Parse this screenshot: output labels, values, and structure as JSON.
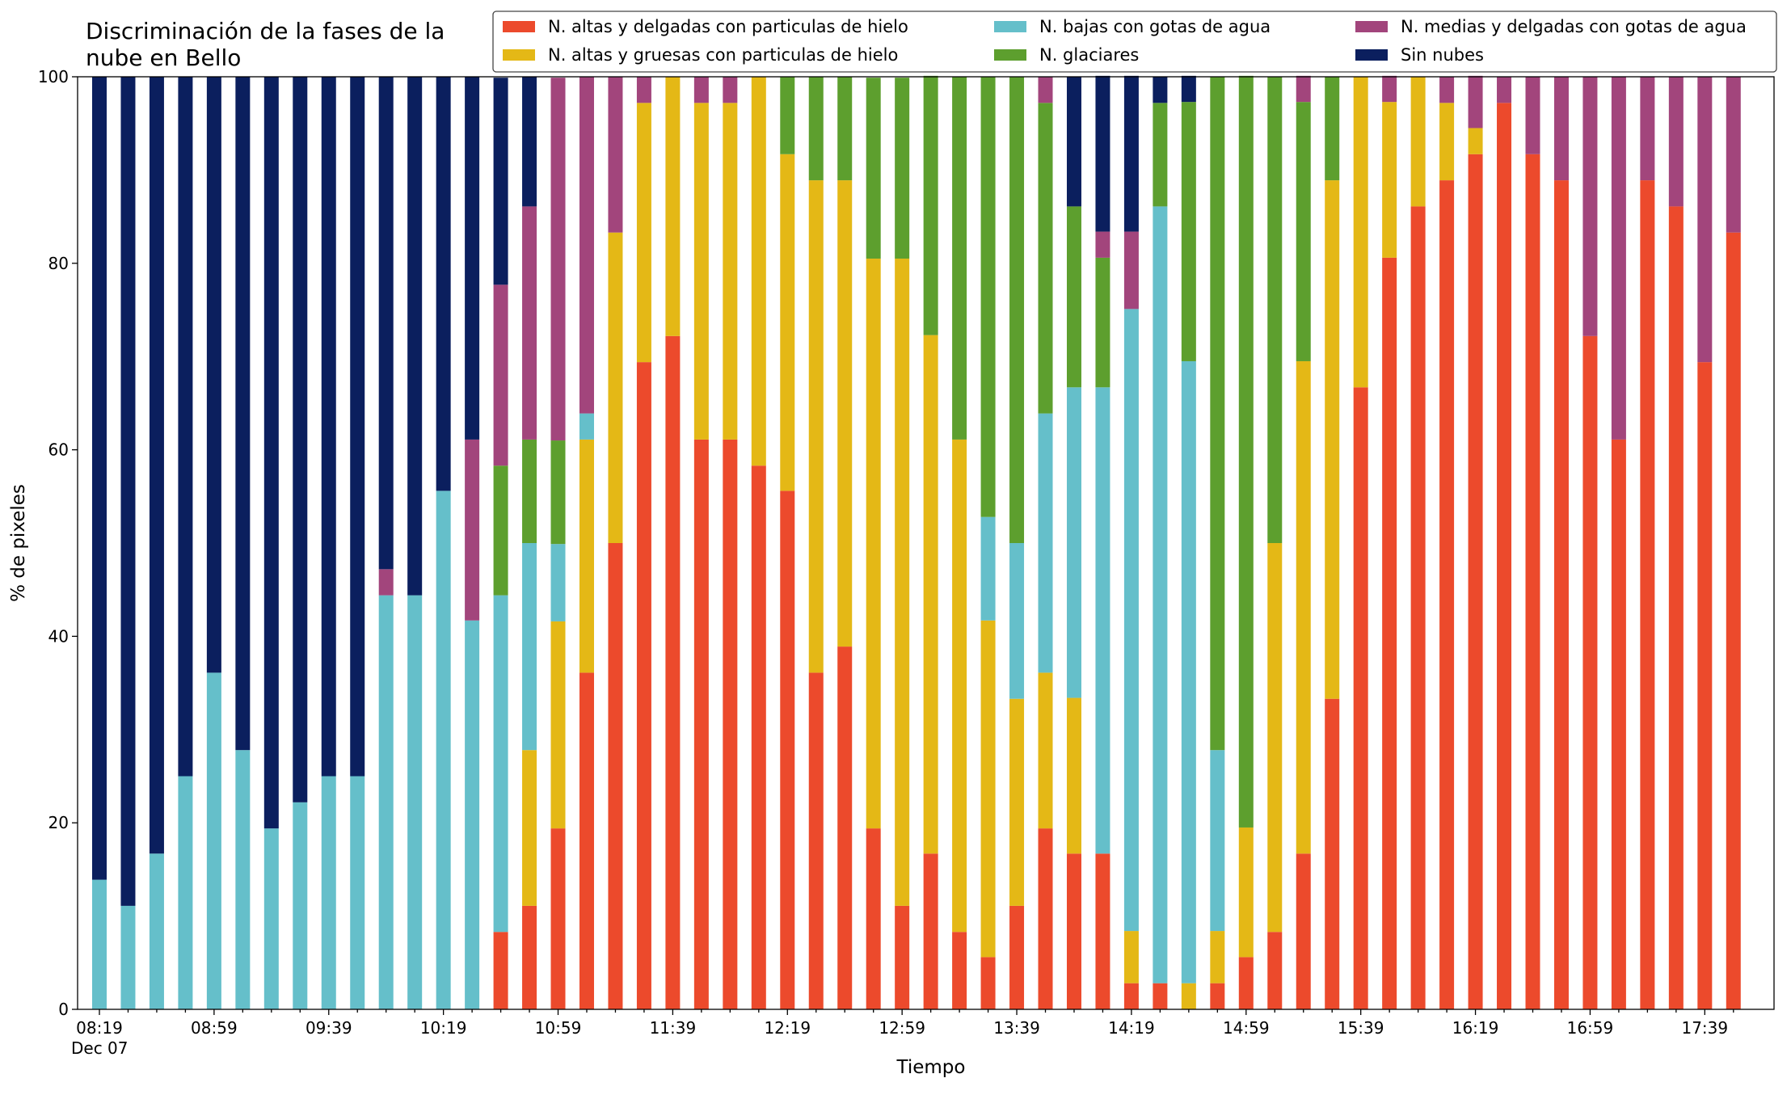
{
  "chart_data": {
    "type": "stacked_bar",
    "title": "Discriminación de la fases de la\nnube en Bello",
    "x_label": "Tiempo",
    "y_label": "% de pixeles",
    "x_date_label": "Dec 07",
    "categories": [
      "08:19",
      null,
      null,
      null,
      "08:59",
      null,
      null,
      null,
      "09:39",
      null,
      null,
      null,
      "10:19",
      null,
      null,
      null,
      "10:59",
      null,
      null,
      null,
      "11:39",
      null,
      null,
      null,
      "12:19",
      null,
      null,
      null,
      "12:59",
      null,
      null,
      null,
      "13:39",
      null,
      null,
      null,
      "14:19",
      null,
      null,
      null,
      "14:59",
      null,
      null,
      null,
      "15:39",
      null,
      null,
      null,
      "16:19",
      null,
      null,
      null,
      "16:59",
      null,
      null,
      null,
      "17:39",
      null
    ],
    "ylim": [
      0,
      100
    ],
    "yticks": [
      0,
      20,
      40,
      60,
      80,
      100
    ],
    "legend": "top-right",
    "series": [
      {
        "name": "N. altas y delgadas con particulas de hielo",
        "color": "#ec4a2c",
        "values": [
          0,
          0,
          0,
          0,
          0,
          0,
          0,
          0,
          0,
          0,
          0,
          0,
          0,
          0,
          8.3,
          11.1,
          19.4,
          36.1,
          50,
          69.4,
          72.2,
          61.1,
          61.1,
          58.3,
          55.6,
          36.1,
          38.9,
          19.4,
          11.1,
          16.7,
          8.3,
          5.6,
          11.1,
          19.4,
          16.7,
          16.7,
          2.8,
          2.8,
          0,
          2.8,
          5.6,
          8.3,
          16.7,
          33.3,
          66.7,
          80.6,
          86.1,
          88.9,
          91.7,
          97.2,
          91.7,
          88.9,
          72.2,
          61.1,
          88.9,
          86.1,
          69.4,
          83.3
        ]
      },
      {
        "name": "N. altas y gruesas con particulas de hielo",
        "color": "#e4b816",
        "values": [
          0,
          0,
          0,
          0,
          0,
          0,
          0,
          0,
          0,
          0,
          0,
          0,
          0,
          0,
          0,
          16.7,
          22.2,
          25,
          33.3,
          27.8,
          27.8,
          36.1,
          36.1,
          41.7,
          36.1,
          52.8,
          50,
          61.1,
          69.4,
          55.6,
          52.8,
          36.1,
          22.2,
          16.7,
          16.7,
          0,
          5.6,
          0,
          2.8,
          5.6,
          13.9,
          41.7,
          52.8,
          55.6,
          33.3,
          16.7,
          13.9,
          8.3,
          2.8,
          0,
          0,
          0,
          0,
          0,
          0,
          0,
          0,
          0
        ]
      },
      {
        "name": "N. bajas con gotas de agua",
        "color": "#65bfca",
        "values": [
          13.9,
          11.1,
          16.7,
          25,
          36.1,
          27.8,
          19.4,
          22.2,
          25,
          25,
          44.4,
          44.4,
          55.6,
          41.7,
          36.1,
          22.2,
          8.3,
          2.8,
          0,
          0,
          0,
          0,
          0,
          0,
          0,
          0,
          0,
          0,
          0,
          0,
          0,
          11.1,
          16.7,
          27.8,
          33.3,
          50,
          66.7,
          83.3,
          66.7,
          19.4,
          0,
          0,
          0,
          0,
          0,
          0,
          0,
          0,
          0,
          0,
          0,
          0,
          0,
          0,
          0,
          0,
          0,
          0
        ]
      },
      {
        "name": "N. glaciares",
        "color": "#5d9f2e",
        "values": [
          0,
          0,
          0,
          0,
          0,
          0,
          0,
          0,
          0,
          0,
          0,
          0,
          0,
          0,
          13.9,
          11.1,
          11.1,
          0,
          0,
          0,
          0,
          0,
          0,
          0,
          8.3,
          11.1,
          11.1,
          19.4,
          19.4,
          27.8,
          38.9,
          47.2,
          50,
          33.3,
          19.4,
          13.9,
          0,
          11.1,
          27.8,
          72.2,
          80.6,
          50,
          27.8,
          11.1,
          0,
          0,
          0,
          0,
          0,
          0,
          0,
          0,
          0,
          0,
          0,
          0,
          0,
          0
        ]
      },
      {
        "name": "N. medias y delgadas con gotas de agua",
        "color": "#a2457c",
        "values": [
          0,
          0,
          0,
          0,
          0,
          0,
          0,
          0,
          0,
          0,
          2.8,
          0,
          0,
          19.4,
          19.4,
          25,
          38.9,
          36.1,
          16.7,
          2.8,
          0,
          2.8,
          2.8,
          0,
          0,
          0,
          0,
          0,
          0,
          0,
          0,
          0,
          0,
          2.8,
          0,
          2.8,
          8.3,
          0,
          0,
          0,
          0,
          0,
          2.8,
          0,
          0,
          2.8,
          0,
          2.8,
          5.6,
          2.8,
          8.3,
          11.1,
          27.8,
          38.9,
          11.1,
          13.9,
          30.6,
          16.7
        ]
      },
      {
        "name": "Sin nubes",
        "color": "#0b1f5e",
        "values": [
          86.1,
          88.9,
          83.3,
          75,
          63.9,
          72.2,
          80.6,
          77.8,
          75,
          75,
          52.8,
          55.6,
          44.4,
          38.9,
          22.2,
          13.9,
          0,
          0,
          0,
          0,
          0,
          0,
          0,
          0,
          0,
          0,
          0,
          0,
          0,
          0,
          0,
          0,
          0,
          0,
          13.9,
          16.7,
          16.7,
          2.8,
          2.8,
          0,
          0,
          0,
          0,
          0,
          0,
          0,
          0,
          0,
          0,
          0,
          0,
          0,
          0,
          0,
          0,
          0,
          0,
          0
        ]
      }
    ]
  }
}
